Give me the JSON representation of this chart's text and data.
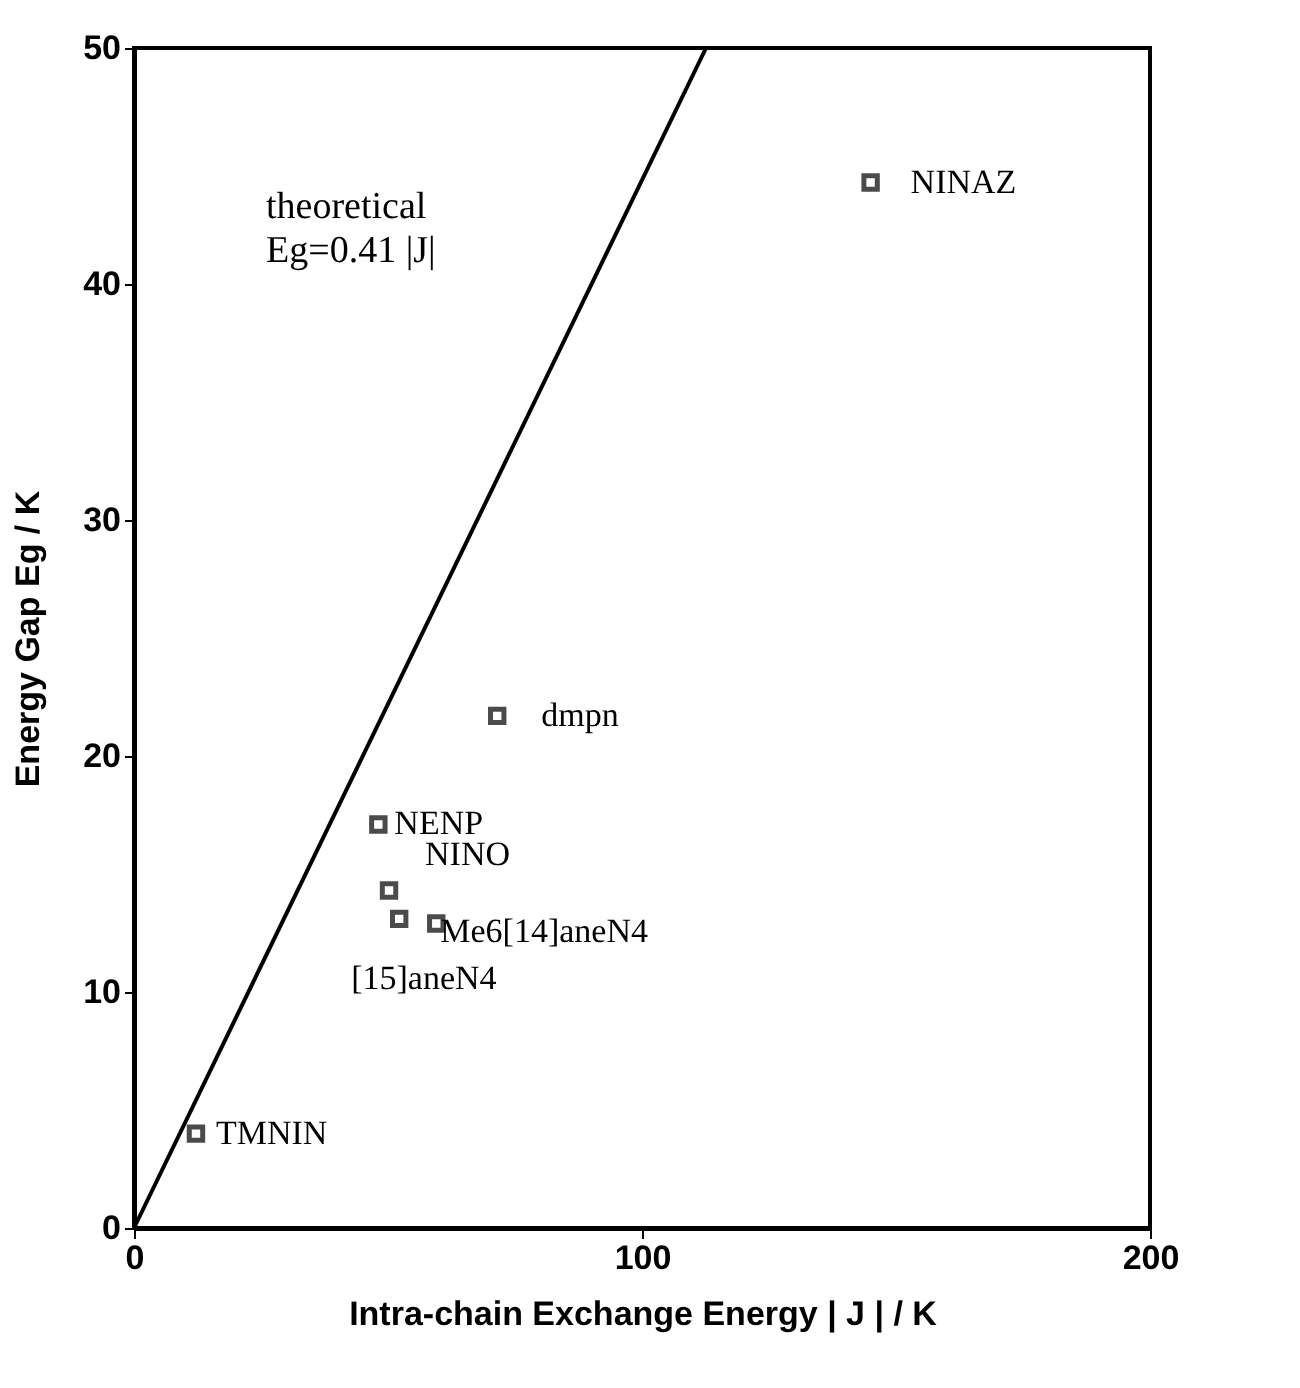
{
  "chart_data": {
    "type": "scatter",
    "xlabel": "Intra-chain Exchange Energy  | J |  /  K",
    "ylabel": "Energy Gap Eg  /  K",
    "xlim": [
      0,
      200
    ],
    "ylim": [
      0,
      50
    ],
    "xticks": [
      0,
      100,
      200
    ],
    "yticks": [
      0,
      10,
      20,
      30,
      40,
      50
    ],
    "grid": false,
    "series": [
      {
        "marker": "square",
        "color": "#000000",
        "x": [
          145,
          71.5,
          48.1,
          50.2,
          52.2,
          59.5,
          12.2
        ],
        "values": [
          44.3,
          21.7,
          17.1,
          14.3,
          13.1,
          12.9,
          4.0
        ]
      },
      {
        "type": "line",
        "color": "#000000",
        "line_style": "solid",
        "marker": "none",
        "x": [
          0,
          112.6
        ],
        "values": [
          0,
          50
        ]
      }
    ],
    "annotations": [
      {
        "text": "NINAZ",
        "x": 145,
        "y": 44.3
      },
      {
        "text": "dmpn",
        "x": 71.5,
        "y": 21.7
      },
      {
        "text": "NENP",
        "x": 48.1,
        "y": 17.1
      },
      {
        "text": "NINO",
        "x": 50.2,
        "y": 14.3
      },
      {
        "text": "[15]aneN4",
        "x": 52.2,
        "y": 13.1
      },
      {
        "text": "Me6[14]aneN4",
        "x": 59.5,
        "y": 12.9
      },
      {
        "text": "TMNIN",
        "x": 12.2,
        "y": 4.0
      },
      "theoretical\nEg=0.41 |J|"
    ]
  }
}
